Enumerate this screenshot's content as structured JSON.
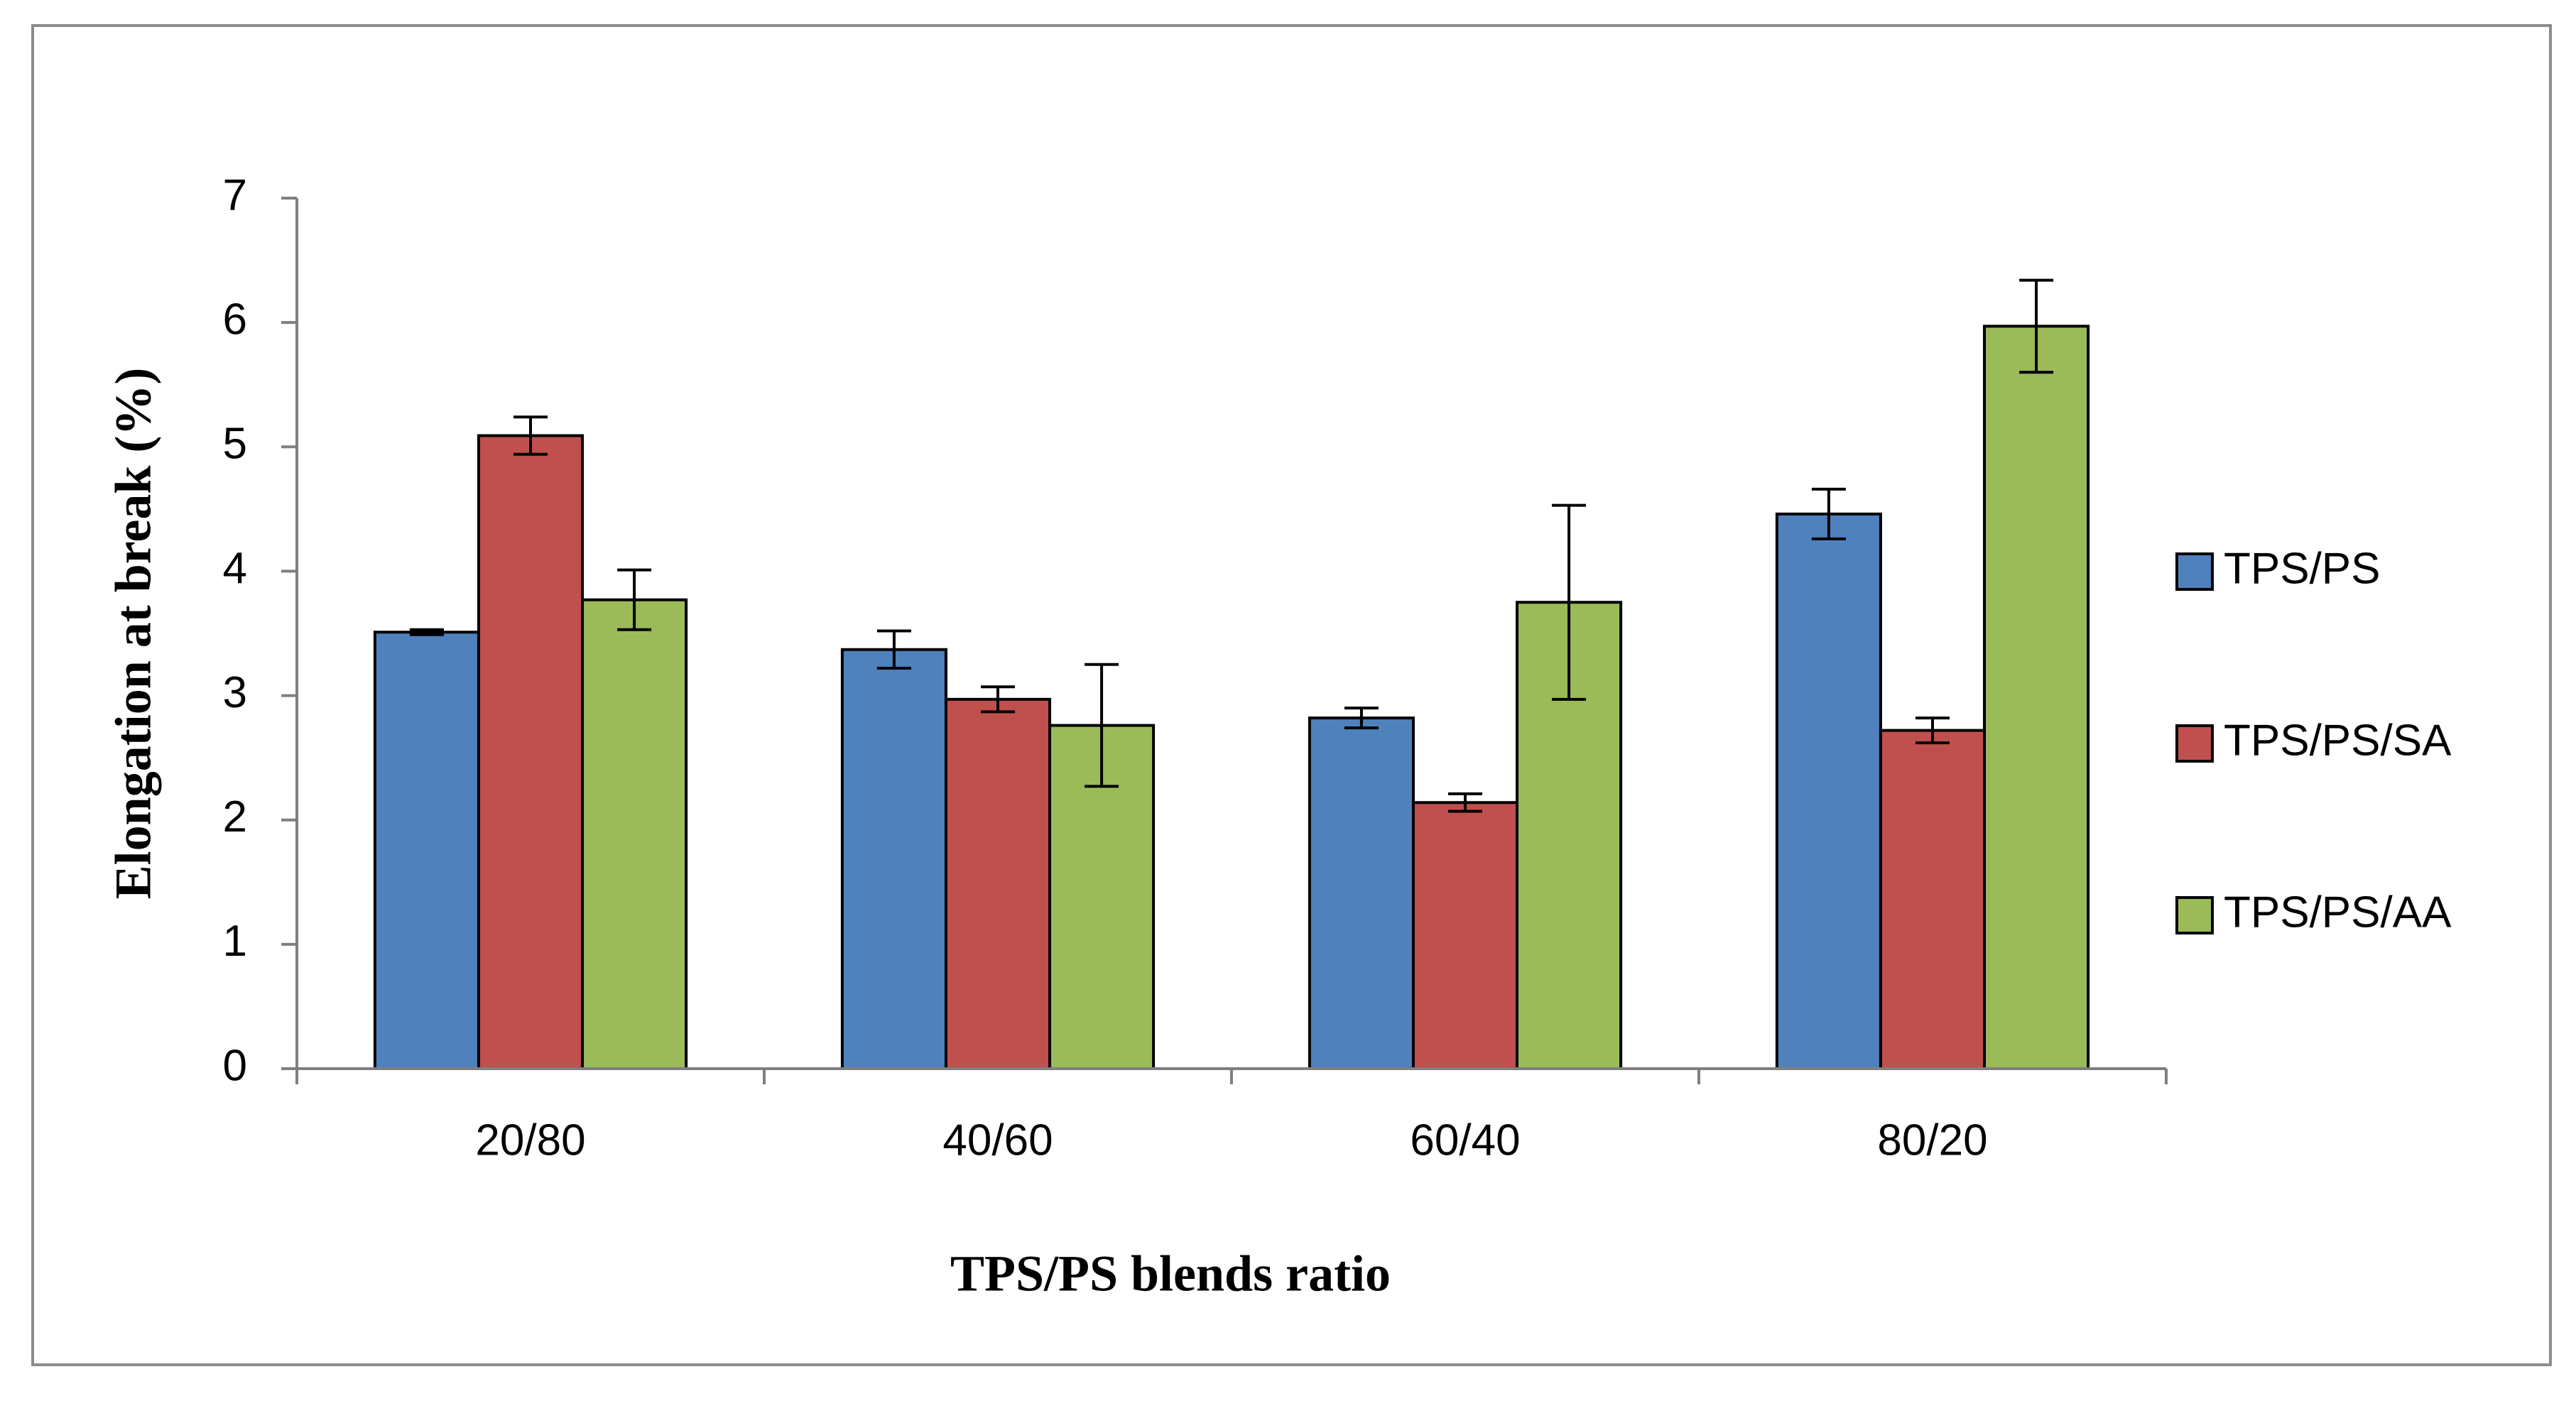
{
  "chart_data": {
    "type": "bar",
    "title": "",
    "xlabel": "TPS/PS blends ratio",
    "ylabel": "Elongation at break (%)",
    "ylim": [
      0,
      7
    ],
    "yticks": [
      "0",
      "1",
      "2",
      "3",
      "4",
      "5",
      "6",
      "7"
    ],
    "grid": false,
    "legend_position": "right",
    "categories": [
      "20/80",
      "40/60",
      "60/40",
      "80/20"
    ],
    "series": [
      {
        "name": "TPS/PS",
        "color": "#4f81bd",
        "values": [
          3.51,
          3.37,
          2.82,
          4.46
        ],
        "errors": [
          0.02,
          0.15,
          0.08,
          0.2
        ]
      },
      {
        "name": "TPS/PS/SA",
        "color": "#c0504d",
        "values": [
          5.09,
          2.97,
          2.14,
          2.72
        ],
        "errors": [
          0.15,
          0.1,
          0.07,
          0.1
        ]
      },
      {
        "name": "TPS/PS/AA",
        "color": "#9bbb59",
        "values": [
          3.77,
          2.76,
          3.75,
          5.97
        ],
        "errors": [
          0.24,
          0.49,
          0.78,
          0.37
        ]
      }
    ]
  }
}
